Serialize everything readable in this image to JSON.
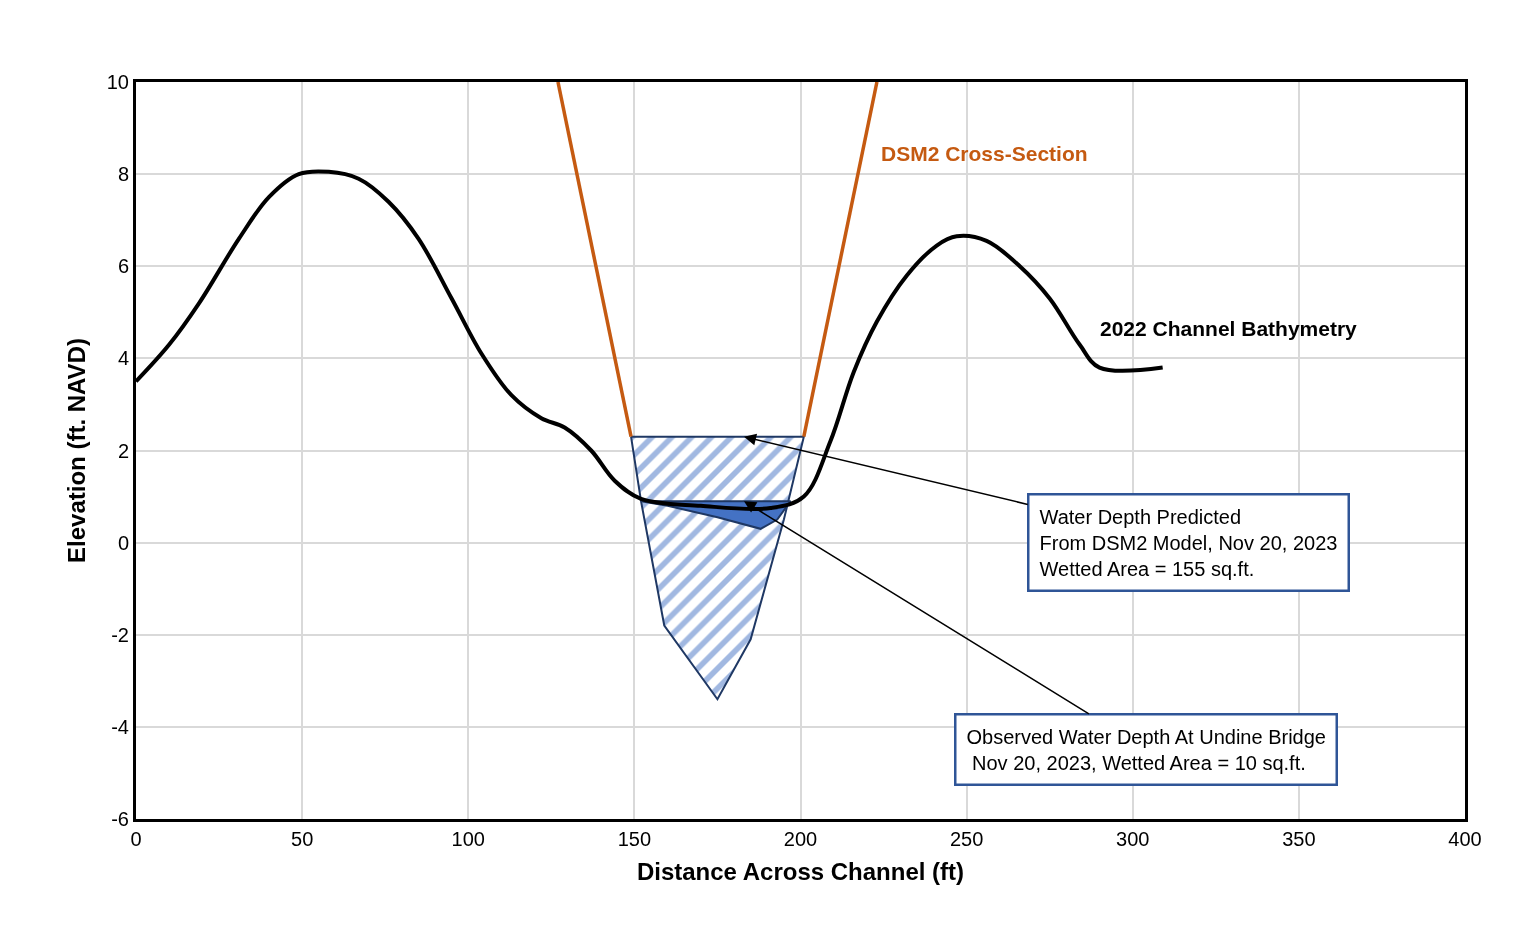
{
  "chart_data": {
    "type": "line",
    "xlabel": "Distance Across Channel (ft)",
    "ylabel": "Elevation (ft. NAVD)",
    "xlim": [
      0,
      400
    ],
    "xticks": [
      0,
      50,
      100,
      150,
      200,
      250,
      300,
      350,
      400
    ],
    "ylim": [
      -6,
      10
    ],
    "yticks": [
      -6,
      -4,
      -2,
      0,
      2,
      4,
      6,
      8,
      10
    ],
    "grid": true,
    "legend": false,
    "series": [
      {
        "name": "2022 Channel Bathymetry",
        "color": "#000000",
        "x": [
          0,
          10,
          19,
          31,
          40,
          49,
          58,
          67,
          76,
          85,
          95,
          104,
          113,
          122,
          129,
          137,
          144,
          152,
          170,
          191,
          201,
          209,
          216,
          223,
          232,
          241,
          247,
          256,
          266,
          275,
          284,
          290,
          309
        ],
        "values": [
          3.5,
          4.3,
          5.2,
          6.6,
          7.5,
          8.0,
          8.05,
          7.9,
          7.4,
          6.6,
          5.3,
          4.1,
          3.2,
          2.7,
          2.5,
          2.0,
          1.35,
          0.95,
          0.8,
          0.75,
          1.0,
          2.2,
          3.7,
          4.8,
          5.8,
          6.45,
          6.65,
          6.55,
          6.0,
          5.3,
          4.3,
          3.8,
          3.8
        ]
      },
      {
        "name": "DSM2 Cross-Section",
        "color": "#c55a11",
        "x": [
          127,
          149,
          175,
          201,
          223
        ],
        "values": [
          10,
          2.3,
          null,
          2.3,
          10
        ]
      },
      {
        "color": "#4472c4",
        "type": "area",
        "x": [
          149,
          201,
          195,
          185,
          175,
          159,
          152,
          149
        ],
        "values": [
          2.3,
          2.3,
          0.5,
          -2.1,
          -3.4,
          -1.8,
          0.9,
          2.3
        ]
      },
      {
        "color": "#4472c4",
        "type": "area",
        "x": [
          152,
          197,
          193,
          188,
          175,
          160,
          152
        ],
        "values": [
          0.9,
          0.9,
          0.5,
          0.3,
          0.55,
          0.8,
          0.9
        ]
      }
    ],
    "annotations": [
      {
        "text": "Water Depth Predicted\nFrom DSM2 Model, Nov 20, 2023\nWetted Area = 155 sq.ft.",
        "x": 183,
        "y": 2.3
      },
      {
        "text": "Observed Water Depth At Undine Bridge\n Nov 20, 2023, Wetted Area = 10 sq.ft.",
        "x": 183,
        "y": 0.9
      }
    ]
  }
}
